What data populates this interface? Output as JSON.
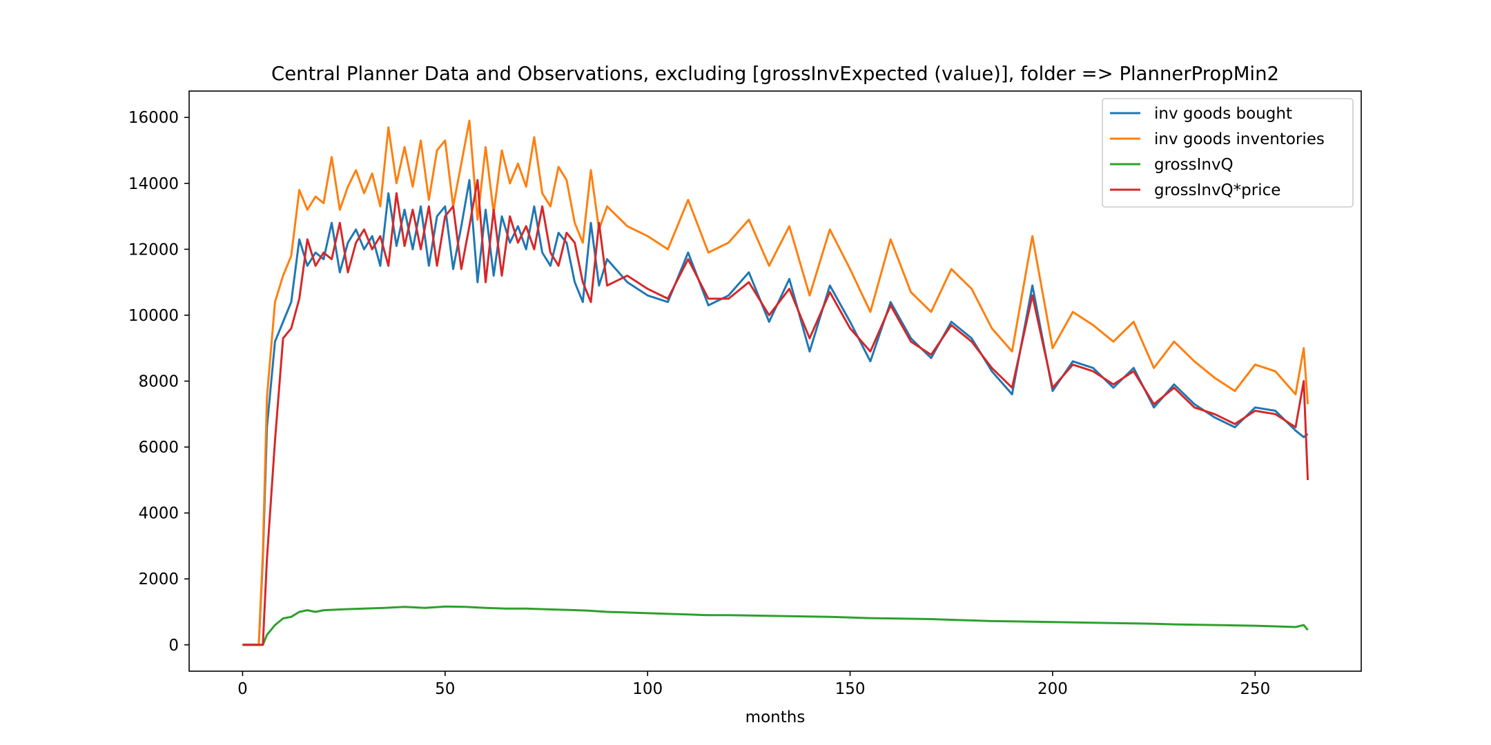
{
  "chart_data": {
    "type": "line",
    "title": "Central Planner Data and Observations, excluding [grossInvExpected (value)], folder => PlannerPropMin2",
    "xlabel": "months",
    "ylabel": "",
    "xlim": [
      -13.2,
      276.2
    ],
    "ylim": [
      -800,
      16800
    ],
    "xticks": [
      0,
      50,
      100,
      150,
      200,
      250
    ],
    "yticks": [
      0,
      2000,
      4000,
      6000,
      8000,
      10000,
      12000,
      14000,
      16000
    ],
    "grid": false,
    "legend_position": "top-right",
    "series": [
      {
        "name": "inv goods bought",
        "color": "#1f77b4",
        "x": [
          0,
          2,
          4,
          5,
          6,
          8,
          10,
          12,
          14,
          16,
          18,
          20,
          22,
          24,
          26,
          28,
          30,
          32,
          34,
          36,
          38,
          40,
          42,
          44,
          46,
          48,
          50,
          52,
          54,
          56,
          58,
          60,
          62,
          64,
          66,
          68,
          70,
          72,
          74,
          76,
          78,
          80,
          82,
          84,
          86,
          88,
          90,
          95,
          100,
          105,
          110,
          115,
          120,
          125,
          130,
          135,
          140,
          145,
          150,
          155,
          160,
          165,
          170,
          175,
          180,
          185,
          190,
          195,
          200,
          205,
          210,
          215,
          220,
          225,
          230,
          235,
          240,
          245,
          250,
          255,
          260,
          262,
          263
        ],
        "y": [
          0,
          0,
          0,
          2600,
          6600,
          9200,
          9800,
          10400,
          12300,
          11500,
          11900,
          11700,
          12800,
          11300,
          12200,
          12600,
          12000,
          12400,
          11500,
          13700,
          12100,
          13200,
          12000,
          13300,
          11500,
          13000,
          13300,
          11400,
          12700,
          14100,
          11000,
          13200,
          11200,
          13000,
          12200,
          12700,
          12000,
          13300,
          11900,
          11500,
          12500,
          12200,
          11000,
          10400,
          12800,
          10900,
          11700,
          11000,
          10600,
          10400,
          11900,
          10300,
          10600,
          11300,
          9800,
          11100,
          8900,
          10900,
          9800,
          8600,
          10400,
          9300,
          8700,
          9800,
          9300,
          8300,
          7600,
          10900,
          7700,
          8600,
          8400,
          7800,
          8400,
          7200,
          7900,
          7300,
          6900,
          6600,
          7200,
          7100,
          6500,
          6300,
          6400
        ]
      },
      {
        "name": "inv goods inventories",
        "color": "#ff7f0e",
        "x": [
          0,
          2,
          4,
          5,
          6,
          8,
          10,
          12,
          14,
          16,
          18,
          20,
          22,
          24,
          26,
          28,
          30,
          32,
          34,
          36,
          38,
          40,
          42,
          44,
          46,
          48,
          50,
          52,
          54,
          56,
          58,
          60,
          62,
          64,
          66,
          68,
          70,
          72,
          74,
          76,
          78,
          80,
          82,
          84,
          86,
          88,
          90,
          95,
          100,
          105,
          110,
          115,
          120,
          125,
          130,
          135,
          140,
          145,
          150,
          155,
          160,
          165,
          170,
          175,
          180,
          185,
          190,
          195,
          200,
          205,
          210,
          215,
          220,
          225,
          230,
          235,
          240,
          245,
          250,
          255,
          260,
          262,
          263
        ],
        "y": [
          0,
          0,
          0,
          2800,
          7500,
          10400,
          11200,
          11800,
          13800,
          13200,
          13600,
          13400,
          14800,
          13200,
          13900,
          14400,
          13700,
          14300,
          13300,
          15700,
          14000,
          15100,
          13900,
          15300,
          13500,
          15000,
          15300,
          13300,
          14600,
          15900,
          12900,
          15100,
          13100,
          15000,
          14000,
          14600,
          13900,
          15400,
          13700,
          13300,
          14500,
          14100,
          12800,
          12200,
          14400,
          12600,
          13300,
          12700,
          12400,
          12000,
          13500,
          11900,
          12200,
          12900,
          11500,
          12700,
          10600,
          12600,
          11400,
          10100,
          12300,
          10700,
          10100,
          11400,
          10800,
          9600,
          8900,
          12400,
          9000,
          10100,
          9700,
          9200,
          9800,
          8400,
          9200,
          8600,
          8100,
          7700,
          8500,
          8300,
          7600,
          9000,
          7300
        ]
      },
      {
        "name": "grossInvQ",
        "color": "#2ca02c",
        "x": [
          0,
          2,
          4,
          5,
          6,
          8,
          10,
          12,
          14,
          16,
          18,
          20,
          25,
          30,
          35,
          40,
          45,
          50,
          55,
          60,
          65,
          70,
          75,
          80,
          85,
          90,
          95,
          100,
          105,
          110,
          115,
          120,
          125,
          130,
          135,
          140,
          145,
          150,
          155,
          160,
          165,
          170,
          175,
          180,
          185,
          190,
          195,
          200,
          205,
          210,
          215,
          220,
          225,
          230,
          235,
          240,
          245,
          250,
          255,
          260,
          262,
          263
        ],
        "y": [
          0,
          0,
          0,
          0,
          300,
          600,
          800,
          850,
          1000,
          1050,
          1000,
          1050,
          1080,
          1100,
          1120,
          1150,
          1120,
          1160,
          1150,
          1120,
          1100,
          1100,
          1080,
          1060,
          1040,
          1000,
          980,
          960,
          940,
          920,
          900,
          900,
          890,
          880,
          870,
          860,
          850,
          830,
          810,
          800,
          790,
          780,
          760,
          740,
          720,
          710,
          700,
          690,
          680,
          670,
          660,
          650,
          640,
          620,
          610,
          600,
          590,
          580,
          560,
          540,
          600,
          450
        ]
      },
      {
        "name": "grossInvQ*price",
        "color": "#d62728",
        "x": [
          0,
          2,
          4,
          5,
          6,
          8,
          10,
          12,
          14,
          16,
          18,
          20,
          22,
          24,
          26,
          28,
          30,
          32,
          34,
          36,
          38,
          40,
          42,
          44,
          46,
          48,
          50,
          52,
          54,
          56,
          58,
          60,
          62,
          64,
          66,
          68,
          70,
          72,
          74,
          76,
          78,
          80,
          82,
          84,
          86,
          88,
          90,
          95,
          100,
          105,
          110,
          115,
          120,
          125,
          130,
          135,
          140,
          145,
          150,
          155,
          160,
          165,
          170,
          175,
          180,
          185,
          190,
          195,
          200,
          205,
          210,
          215,
          220,
          225,
          230,
          235,
          240,
          245,
          250,
          255,
          260,
          262,
          263
        ],
        "y": [
          0,
          0,
          0,
          0,
          2600,
          6200,
          9300,
          9600,
          10500,
          12300,
          11500,
          11900,
          11700,
          12800,
          11300,
          12200,
          12600,
          12000,
          12400,
          11500,
          13700,
          12100,
          13200,
          12000,
          13300,
          11500,
          13000,
          13300,
          11400,
          12700,
          14100,
          11000,
          13200,
          11200,
          13000,
          12200,
          12700,
          12000,
          13300,
          11900,
          11500,
          12500,
          12200,
          11000,
          10400,
          12800,
          10900,
          11200,
          10800,
          10500,
          11700,
          10500,
          10500,
          11000,
          10000,
          10800,
          9300,
          10700,
          9600,
          8900,
          10300,
          9200,
          8800,
          9700,
          9200,
          8400,
          7800,
          10600,
          7800,
          8500,
          8300,
          7900,
          8300,
          7300,
          7800,
          7200,
          7000,
          6700,
          7100,
          7000,
          6600,
          8000,
          5000
        ]
      }
    ]
  }
}
